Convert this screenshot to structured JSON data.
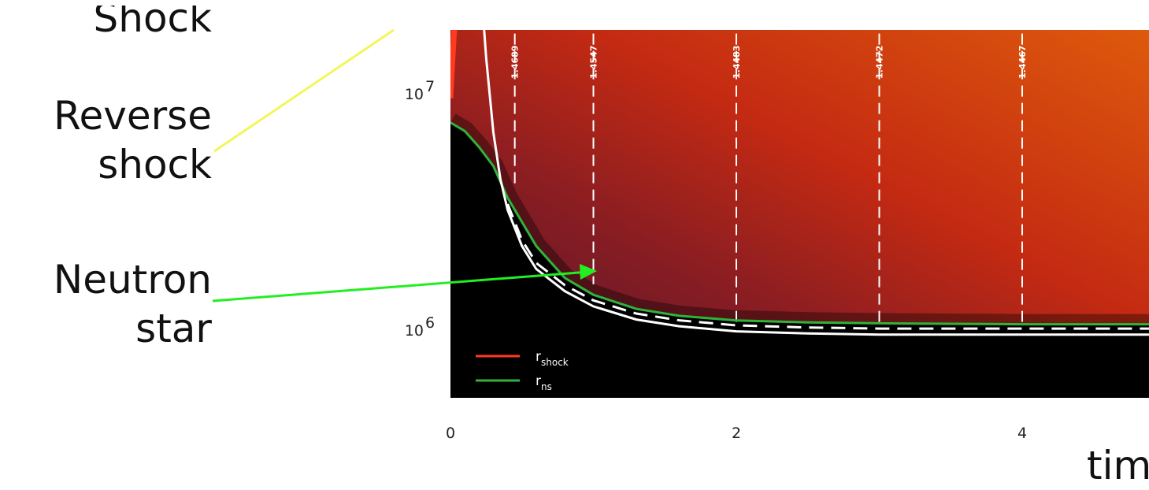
{
  "annotations": {
    "shock": "Shock",
    "reverse_shock": [
      "Reverse",
      "shock"
    ],
    "neutron_star": [
      "Neutron",
      "star"
    ],
    "time_label": "tim"
  },
  "colors": {
    "background_dark": "#000000",
    "heat_purple": "#4a1530",
    "heat_red": "#c42a12",
    "heat_orange": "#de5a0c",
    "shock_line": "#ff3a1e",
    "ns_line": "#2fb33a",
    "reverse_shock_pointer": "#f5f55a",
    "neutron_star_pointer": "#22ee22"
  },
  "chart_data": {
    "type": "line",
    "title": "",
    "xlabel": "tim",
    "ylabel": "",
    "x_ticks": [
      {
        "value": 0,
        "label": "0"
      },
      {
        "value": 2,
        "label": "2"
      },
      {
        "value": 4,
        "label": "4"
      }
    ],
    "y_ticks": [
      {
        "value": 1000000,
        "label": "10",
        "exp": "6"
      },
      {
        "value": 10000000,
        "label": "10",
        "exp": "7"
      }
    ],
    "xlim": [
      0,
      4.95
    ],
    "ylim": [
      570000,
      25000000
    ],
    "yscale": "log",
    "legend": {
      "placement": "bottom-left",
      "entries": [
        {
          "name": "r",
          "sub": "shock",
          "color": "#ff3a1e"
        },
        {
          "name": "r",
          "sub": "ns",
          "color": "#2fb33a"
        }
      ]
    },
    "series": [
      {
        "name": "r_shock",
        "color": "#ff3a1e",
        "x": [
          0.0,
          0.015,
          0.03,
          0.05,
          0.07,
          0.09
        ],
        "y": [
          9500000,
          14000000,
          20000000,
          24000000,
          25000000,
          25000000
        ]
      },
      {
        "name": "r_ns",
        "color": "#2fb33a",
        "x": [
          0.0,
          0.1,
          0.2,
          0.3,
          0.4,
          0.6,
          0.8,
          1.0,
          1.3,
          1.6,
          2.0,
          2.5,
          3.0,
          3.5,
          4.0,
          4.5,
          4.95
        ],
        "y": [
          7500000,
          6900000,
          5900000,
          4900000,
          3600000,
          2250000,
          1650000,
          1400000,
          1220000,
          1140000,
          1090000,
          1070000,
          1060000,
          1055000,
          1050000,
          1050000,
          1050000
        ]
      },
      {
        "name": "reverse shock",
        "color": "#ffffff",
        "x": [
          0.22,
          0.25,
          0.3,
          0.35,
          0.4,
          0.5,
          0.6,
          0.8,
          1.0,
          1.3,
          1.6,
          2.0,
          2.5,
          3.0,
          3.5,
          4.0,
          4.5,
          4.95
        ],
        "y": [
          25000000,
          14000000,
          6800000,
          4300000,
          3200000,
          2250000,
          1800000,
          1450000,
          1250000,
          1100000,
          1030000,
          980000,
          960000,
          950000,
          950000,
          950000,
          950000,
          950000
        ]
      }
    ],
    "contours": [
      {
        "label": "1.4689",
        "x": 0.45,
        "y_top": 25000000,
        "y_bottom": 4000000
      },
      {
        "label": "1.4547",
        "x": 1.0,
        "y_top": 25000000,
        "y_bottom": 1550000
      },
      {
        "label": "1.4483",
        "x": 2.0,
        "y_top": 25000000,
        "y_bottom": 1050000
      },
      {
        "label": "1.4472",
        "x": 3.0,
        "y_top": 25000000,
        "y_bottom": 1030000
      },
      {
        "label": "1.4467",
        "x": 4.0,
        "y_top": 25000000,
        "y_bottom": 1020000
      }
    ]
  }
}
